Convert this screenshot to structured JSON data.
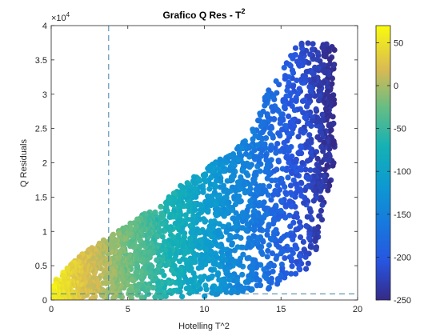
{
  "chart_data": {
    "type": "scatter",
    "title": "Grafico Q Res - T",
    "title_superscript": "2",
    "xlabel": "Hotelling T^2",
    "ylabel": "Q Residuals",
    "xlim": [
      0,
      20
    ],
    "ylim": [
      0,
      40000
    ],
    "x_ticks": [
      "0",
      "5",
      "10",
      "15",
      "20"
    ],
    "y_ticks": [
      "0",
      "0.5",
      "1",
      "1.5",
      "2",
      "2.5",
      "3",
      "3.5",
      "4"
    ],
    "y_exponent_prefix": "×10",
    "y_exponent": "4",
    "grid": false,
    "colorbar": {
      "colormap": "parula",
      "range": [
        -250,
        70
      ],
      "ticks": [
        "50",
        "0",
        "-50",
        "-100",
        "-150",
        "-200",
        "-250"
      ],
      "tick_values": [
        50,
        0,
        -50,
        -100,
        -150,
        -200,
        -250
      ]
    },
    "limit_lines": {
      "x": 3.75,
      "y": 900,
      "style": "dashed",
      "color": "#3f7fa6"
    },
    "point_cloud": {
      "description_free_outline": {
        "upper_envelope": [
          [
            0,
            2500
          ],
          [
            1,
            4500
          ],
          [
            2,
            6800
          ],
          [
            3,
            8200
          ],
          [
            4,
            9500
          ],
          [
            5,
            11000
          ],
          [
            6,
            12500
          ],
          [
            7,
            13500
          ],
          [
            8,
            16000
          ],
          [
            9,
            17500
          ],
          [
            10,
            19000
          ],
          [
            11,
            20500
          ],
          [
            12,
            22000
          ],
          [
            13,
            24000
          ],
          [
            14,
            30000
          ],
          [
            15,
            33000
          ],
          [
            16,
            37500
          ],
          [
            18.5,
            37500
          ]
        ],
        "lower_envelope": [
          [
            0,
            0
          ],
          [
            5,
            200
          ],
          [
            10,
            500
          ],
          [
            15,
            1800
          ],
          [
            16.5,
            3500
          ],
          [
            17.5,
            8000
          ],
          [
            17.8,
            14000
          ],
          [
            18.5,
            19000
          ]
        ]
      },
      "color_value_at_x0": 60,
      "color_value_at_x18": -240
    }
  }
}
